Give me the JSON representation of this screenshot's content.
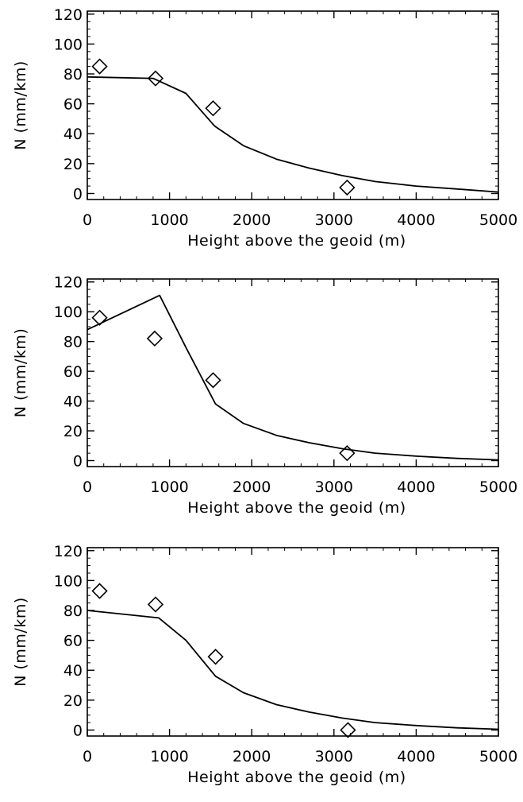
{
  "chart_data": [
    {
      "type": "line",
      "title": "",
      "xlabel": "Height above the geoid (m)",
      "ylabel": "N (mm/km)",
      "xlim": [
        0,
        5000
      ],
      "ylim": [
        -4,
        122
      ],
      "xticks": [
        0,
        1000,
        2000,
        3000,
        4000,
        5000
      ],
      "yticks": [
        0,
        20,
        40,
        60,
        80,
        100,
        120
      ],
      "grid": false,
      "series": [
        {
          "style": "line",
          "x": [
            0,
            800,
            1200,
            1550,
            1900,
            2300,
            2700,
            3100,
            3500,
            4000,
            4500,
            5000
          ],
          "y": [
            78,
            77,
            67,
            45,
            32,
            23,
            17,
            12,
            8,
            5,
            3,
            1
          ]
        },
        {
          "style": "diamond-markers",
          "x": [
            150,
            830,
            1530,
            3160
          ],
          "y": [
            85,
            77,
            57,
            4
          ]
        }
      ]
    },
    {
      "type": "line",
      "title": "",
      "xlabel": "Height above the geoid (m)",
      "ylabel": "N (mm/km)",
      "xlim": [
        0,
        5000
      ],
      "ylim": [
        -4,
        122
      ],
      "xticks": [
        0,
        1000,
        2000,
        3000,
        4000,
        5000
      ],
      "yticks": [
        0,
        20,
        40,
        60,
        80,
        100,
        120
      ],
      "grid": false,
      "series": [
        {
          "style": "line",
          "x": [
            0,
            880,
            1200,
            1560,
            1900,
            2300,
            2700,
            3100,
            3500,
            4000,
            4500,
            5000
          ],
          "y": [
            88,
            111,
            76,
            38,
            25,
            17,
            12,
            8,
            5,
            3,
            1.5,
            0.5
          ]
        },
        {
          "style": "diamond-markers",
          "x": [
            150,
            820,
            1530,
            3160
          ],
          "y": [
            96,
            82,
            54,
            5
          ]
        }
      ]
    },
    {
      "type": "line",
      "title": "",
      "xlabel": "Height above the geoid (m)",
      "ylabel": "N (mm/km)",
      "xlim": [
        0,
        5000
      ],
      "ylim": [
        -4,
        122
      ],
      "xticks": [
        0,
        1000,
        2000,
        3000,
        4000,
        5000
      ],
      "yticks": [
        0,
        20,
        40,
        60,
        80,
        100,
        120
      ],
      "grid": false,
      "series": [
        {
          "style": "line",
          "x": [
            0,
            870,
            1200,
            1560,
            1900,
            2300,
            2700,
            3100,
            3500,
            4000,
            4500,
            5000
          ],
          "y": [
            80,
            75,
            60,
            36,
            25,
            17,
            12,
            8,
            5,
            3,
            1.5,
            0.5
          ]
        },
        {
          "style": "diamond-markers",
          "x": [
            150,
            830,
            1560,
            3170
          ],
          "y": [
            93,
            84,
            49,
            0
          ]
        }
      ]
    }
  ]
}
